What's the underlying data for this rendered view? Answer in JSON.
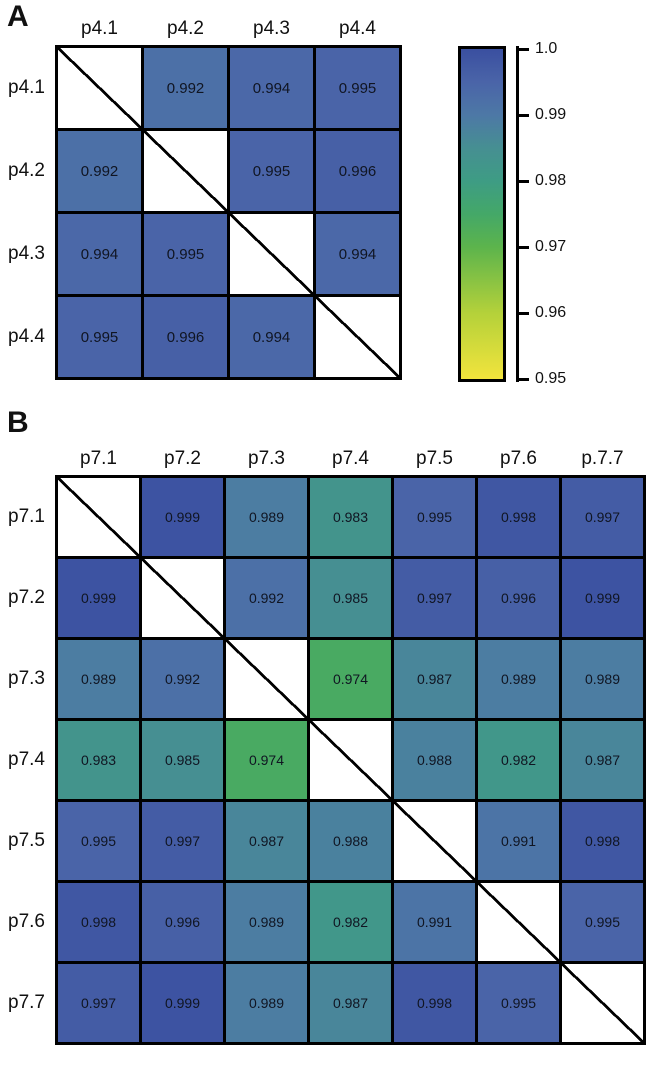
{
  "chart_data": [
    {
      "type": "heatmap",
      "panel_label": "A",
      "col_labels": [
        "p4.1",
        "p4.2",
        "p4.3",
        "p4.4"
      ],
      "row_labels": [
        "p4.1",
        "p4.2",
        "p4.3",
        "p4.4"
      ],
      "matrix": [
        [
          null,
          0.992,
          0.994,
          0.995
        ],
        [
          0.992,
          null,
          0.995,
          0.996
        ],
        [
          0.994,
          0.995,
          null,
          0.994
        ],
        [
          0.995,
          0.996,
          0.994,
          null
        ]
      ],
      "diagonal": "blank-white-with-slash",
      "value_range": [
        0.95,
        1.0
      ],
      "grid": "black-cell-borders",
      "legend_position": "right-of-panel-A"
    },
    {
      "type": "heatmap",
      "panel_label": "B",
      "col_labels": [
        "p7.1",
        "p7.2",
        "p7.3",
        "p7.4",
        "p7.5",
        "p7.6",
        "p.7.7"
      ],
      "row_labels": [
        "p7.1",
        "p7.2",
        "p7.3",
        "p7.4",
        "p7.5",
        "p7.6",
        "p7.7"
      ],
      "matrix": [
        [
          null,
          0.999,
          0.989,
          0.983,
          0.995,
          0.998,
          0.997
        ],
        [
          0.999,
          null,
          0.992,
          0.985,
          0.997,
          0.996,
          0.999
        ],
        [
          0.989,
          0.992,
          null,
          0.974,
          0.987,
          0.989,
          0.989
        ],
        [
          0.983,
          0.985,
          0.974,
          null,
          0.988,
          0.982,
          0.987
        ],
        [
          0.995,
          0.997,
          0.987,
          0.988,
          null,
          0.991,
          0.998
        ],
        [
          0.998,
          0.996,
          0.989,
          0.982,
          0.991,
          null,
          0.995
        ],
        [
          0.997,
          0.999,
          0.989,
          0.987,
          0.998,
          0.995,
          null
        ]
      ],
      "diagonal": "blank-white-with-slash",
      "value_range": [
        0.95,
        1.0
      ],
      "grid": "black-cell-borders"
    }
  ],
  "colorbar": {
    "orientation": "vertical",
    "min": 0.95,
    "max": 1.0,
    "tick_labels": [
      "1.0",
      "0.99",
      "0.98",
      "0.97",
      "0.96",
      "0.95"
    ],
    "tick_values": [
      1.0,
      0.99,
      0.98,
      0.97,
      0.96,
      0.95
    ],
    "color_stops": [
      {
        "value": 0.95,
        "color": "#f2e43c"
      },
      {
        "value": 0.96,
        "color": "#b4d13a"
      },
      {
        "value": 0.97,
        "color": "#5cb44c"
      },
      {
        "value": 0.975,
        "color": "#44a868"
      },
      {
        "value": 0.98,
        "color": "#3e9c84"
      },
      {
        "value": 0.985,
        "color": "#468f92"
      },
      {
        "value": 0.99,
        "color": "#4d78a6"
      },
      {
        "value": 0.995,
        "color": "#4a64a8"
      },
      {
        "value": 1.0,
        "color": "#3a4fa0"
      }
    ]
  }
}
